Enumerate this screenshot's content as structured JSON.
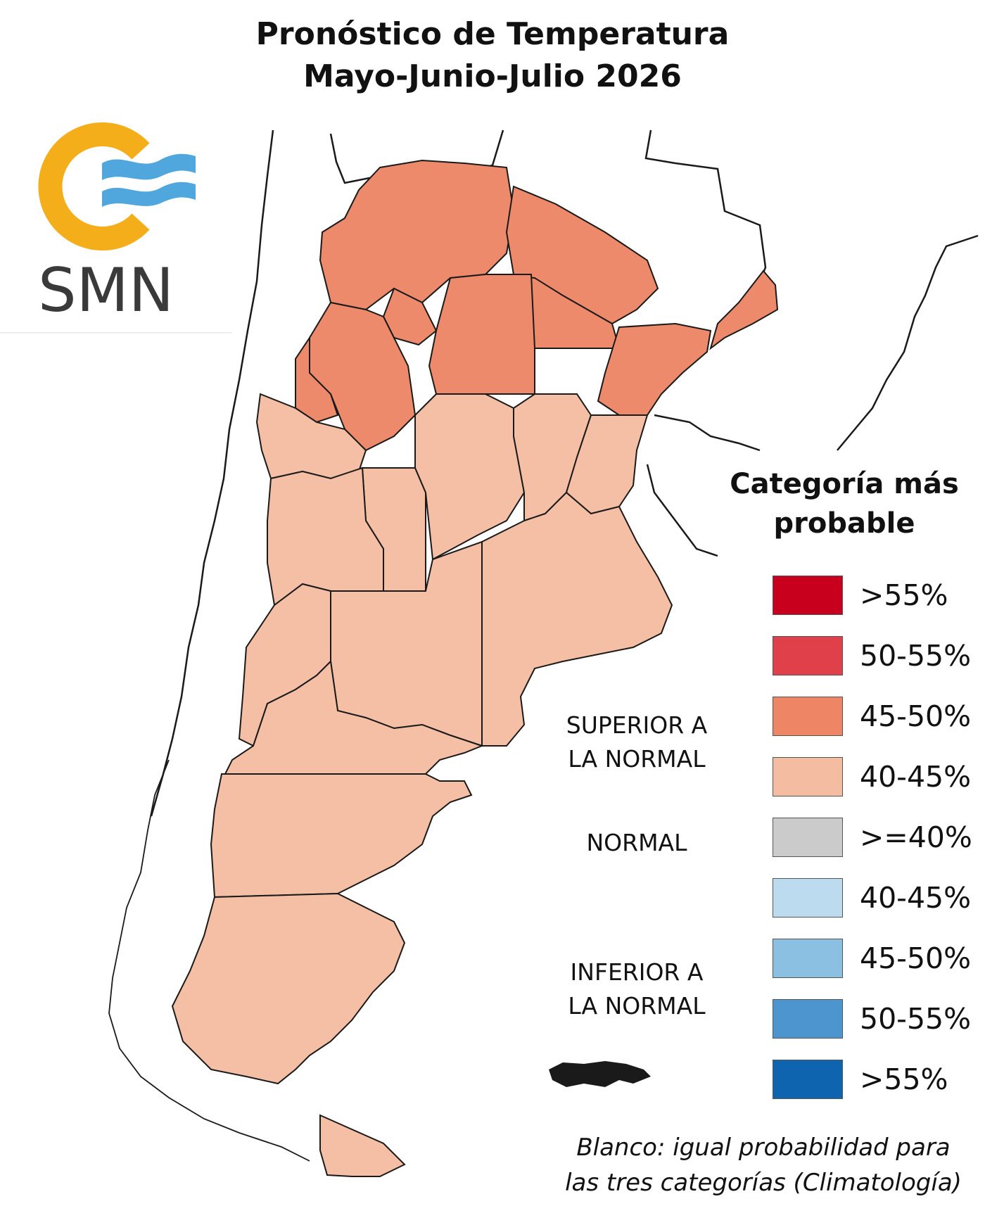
{
  "title": {
    "line1": "Pronóstico de Temperatura",
    "line2": "Mayo-Junio-Julio 2026"
  },
  "logo": {
    "text": "SMN",
    "ring_color": "#F4AE1A",
    "wave_color": "#4FA7DD",
    "text_color": "#3a3a3a"
  },
  "legend": {
    "heading_line1": "Categoría más",
    "heading_line2": "probable",
    "group_superior_line1": "SUPERIOR A",
    "group_superior_line2": "LA NORMAL",
    "group_normal": "NORMAL",
    "group_inferior_line1": "INFERIOR A",
    "group_inferior_line2": "LA NORMAL",
    "items": [
      {
        "label": ">55%",
        "color": "#C8001E"
      },
      {
        "label": "50-55%",
        "color": "#DF4049"
      },
      {
        "label": "45-50%",
        "color": "#EE8665"
      },
      {
        "label": "40-45%",
        "color": "#F4BDA2"
      },
      {
        "label": ">=40%",
        "color": "#CBCBCB"
      },
      {
        "label": "40-45%",
        "color": "#BDDBEE"
      },
      {
        "label": "45-50%",
        "color": "#8CC0E2"
      },
      {
        "label": "50-55%",
        "color": "#4D95CE"
      },
      {
        "label": ">55%",
        "color": "#0F64B0"
      }
    ],
    "footnote_line1": "Blanco: igual probabilidad para",
    "footnote_line2": "las tres categorías (Climatología)"
  },
  "map_colors": {
    "north_category": "45-50%",
    "south_category": "40-45%",
    "north_fill": "#EE8A6C",
    "south_fill": "#F4BFA5",
    "border": "#1a1a1a"
  }
}
